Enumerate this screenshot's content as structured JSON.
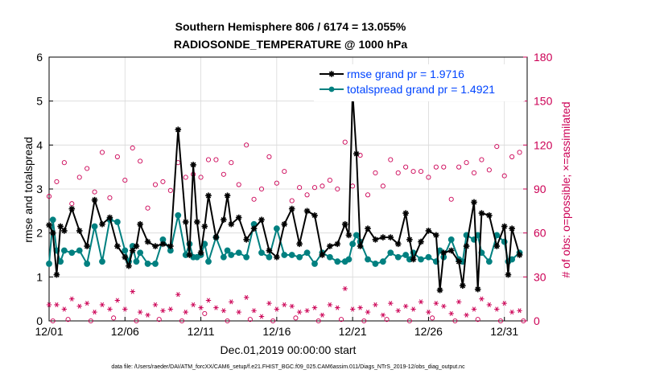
{
  "chart_data": {
    "type": "line",
    "title": "Southern Hemisphere 806 / 6174 = 13.055%",
    "subtitle": "RADIOSONDE_TEMPERATURE @ 1000 hPa",
    "xlabel": "Dec.01,2019 00:00:00 start",
    "ylabel": "rmse and totalspread",
    "y2label": "# of obs: o=possible; ×=assimilated",
    "footer": "data file: /Users/raeder/DAI/ATM_forcXX/CAM6_setup/f.e21.FHIST_BGC.f09_025.CAM6assim.011/Diags_NTrS_2019-12/obs_diag_output.nc",
    "xlim": [
      0,
      31.5
    ],
    "ylim": [
      0,
      6
    ],
    "y2lim": [
      0,
      180
    ],
    "xticks": [
      0,
      5,
      10,
      15,
      20,
      25,
      30
    ],
    "xtick_labels": [
      "12/01",
      "12/06",
      "12/11",
      "12/16",
      "12/21",
      "12/26",
      "12/31"
    ],
    "yticks": [
      0,
      1,
      2,
      3,
      4,
      5,
      6
    ],
    "ytick_labels": [
      "0",
      "1",
      "2",
      "3",
      "4",
      "5",
      "6"
    ],
    "y2ticks": [
      0,
      30,
      60,
      90,
      120,
      150,
      180
    ],
    "y2tick_labels": [
      "0",
      "30",
      "60",
      "90",
      "120",
      "150",
      "180"
    ],
    "colors": {
      "rmse": "#000000",
      "spread": "#008080",
      "obs": "#cc0055",
      "legend_text": "#0044ff"
    },
    "legend": [
      {
        "name": "rmse grand pr = 1.9716",
        "color": "#000000"
      },
      {
        "name": "totalspread grand pr = 1.4921",
        "color": "#008080"
      }
    ],
    "x": [
      0.0,
      0.25,
      0.5,
      0.75,
      1.0,
      1.5,
      2.0,
      2.5,
      3.0,
      3.5,
      4.0,
      4.5,
      5.0,
      5.25,
      5.5,
      5.75,
      6.0,
      6.5,
      7.0,
      7.5,
      8.0,
      8.5,
      9.0,
      9.25,
      9.5,
      9.75,
      10.0,
      10.25,
      10.5,
      11.0,
      11.5,
      11.75,
      12.0,
      12.5,
      13.0,
      13.5,
      14.0,
      14.5,
      15.0,
      15.5,
      16.0,
      16.5,
      17.0,
      17.5,
      18.0,
      18.5,
      19.0,
      19.5,
      19.75,
      20.0,
      20.25,
      20.5,
      21.0,
      21.5,
      22.0,
      22.5,
      23.0,
      23.5,
      23.75,
      24.0,
      24.5,
      25.0,
      25.5,
      25.75,
      26.0,
      26.5,
      27.0,
      27.25,
      27.5,
      28.0,
      28.25,
      28.5,
      29.0,
      29.5,
      30.0,
      30.25,
      30.5,
      31.0
    ],
    "series": [
      {
        "name": "rmse",
        "values": [
          2.18,
          2.0,
          1.05,
          2.15,
          2.05,
          2.55,
          2.05,
          1.7,
          2.75,
          2.2,
          2.35,
          1.7,
          1.45,
          1.25,
          1.6,
          1.7,
          2.2,
          1.8,
          1.7,
          1.75,
          1.7,
          4.35,
          2.25,
          1.5,
          3.55,
          2.25,
          1.55,
          2.15,
          2.85,
          1.9,
          2.3,
          2.85,
          2.2,
          2.35,
          1.85,
          2.1,
          2.3,
          1.6,
          1.45,
          2.2,
          2.55,
          1.75,
          2.5,
          2.4,
          1.5,
          1.7,
          1.75,
          2.2,
          1.95,
          5.2,
          3.8,
          1.7,
          2.1,
          1.85,
          1.9,
          1.9,
          1.75,
          2.45,
          1.85,
          1.4,
          1.8,
          2.05,
          1.95,
          0.7,
          1.55,
          1.6,
          1.35,
          0.8,
          1.7,
          2.7,
          0.72,
          2.45,
          2.4,
          1.7,
          2.15,
          1.05,
          2.1,
          1.5
        ]
      },
      {
        "name": "totalspread",
        "values": [
          1.3,
          2.3,
          1.6,
          1.35,
          1.6,
          1.55,
          1.6,
          1.3,
          2.15,
          1.35,
          2.3,
          2.25,
          1.6,
          1.35,
          1.7,
          1.35,
          1.55,
          1.3,
          1.3,
          1.85,
          1.6,
          2.4,
          1.5,
          1.75,
          1.45,
          1.45,
          1.5,
          1.75,
          1.35,
          1.9,
          1.45,
          1.6,
          1.5,
          1.55,
          1.45,
          2.2,
          1.55,
          1.45,
          2.1,
          1.5,
          1.5,
          1.45,
          1.55,
          1.3,
          1.55,
          1.45,
          1.35,
          1.35,
          1.4,
          1.75,
          1.95,
          1.8,
          1.4,
          1.3,
          1.35,
          1.55,
          1.45,
          1.5,
          1.4,
          1.55,
          1.4,
          1.45,
          1.35,
          1.6,
          1.45,
          1.85,
          1.4,
          1.35,
          1.95,
          1.85,
          1.95,
          1.55,
          1.35,
          1.95,
          1.8,
          1.35,
          1.4,
          1.55
        ]
      },
      {
        "name": "obs_possible",
        "axis": "right",
        "x": [
          0,
          0.5,
          1,
          1.5,
          2,
          2.5,
          3,
          3.5,
          4,
          4.5,
          5,
          5.5,
          6,
          6.5,
          7,
          7.5,
          8,
          8.5,
          9,
          9.5,
          10,
          10.5,
          11,
          11.5,
          12,
          12.5,
          13,
          13.5,
          14,
          14.5,
          15,
          15.5,
          16,
          16.5,
          17,
          17.5,
          18,
          18.5,
          19,
          19.5,
          20,
          20.5,
          21,
          21.5,
          22,
          22.5,
          23,
          23.5,
          24,
          24.5,
          25,
          25.5,
          26,
          26.5,
          27,
          27.5,
          28,
          28.5,
          29,
          29.5,
          30,
          30.5,
          31
        ],
        "values": [
          85,
          95,
          108,
          80,
          98,
          104,
          88,
          115,
          84,
          112,
          96,
          118,
          109,
          77,
          93,
          95,
          89,
          108,
          98,
          100,
          98,
          110,
          110,
          100,
          108,
          93,
          120,
          83,
          90,
          112,
          94,
          102,
          82,
          91,
          86,
          91,
          92,
          96,
          90,
          122,
          92,
          113,
          86,
          101,
          92,
          110,
          101,
          105,
          102,
          102,
          98,
          105,
          105,
          83,
          105,
          108,
          101,
          110,
          103,
          119,
          99,
          112,
          115
        ]
      },
      {
        "name": "obs_assimilated",
        "axis": "right",
        "x": [
          0,
          0.5,
          1,
          1.5,
          2,
          2.5,
          3,
          3.5,
          4,
          4.5,
          5,
          5.5,
          6,
          6.5,
          7,
          7.5,
          8,
          8.5,
          9,
          9.5,
          10,
          10.5,
          11,
          11.5,
          12,
          12.5,
          13,
          13.5,
          14,
          14.5,
          15,
          15.5,
          16,
          16.5,
          17,
          17.5,
          18,
          18.5,
          19,
          19.5,
          20,
          20.5,
          21,
          21.5,
          22,
          22.5,
          23,
          23.5,
          24,
          24.5,
          25,
          25.5,
          26,
          26.5,
          27,
          27.5,
          28,
          28.5,
          29,
          29.5,
          30,
          30.5,
          31
        ],
        "values": [
          11,
          11,
          8,
          15,
          10,
          12,
          6,
          11,
          8,
          14,
          8,
          20,
          6,
          4,
          11,
          7,
          8,
          18,
          6,
          11,
          9,
          14,
          9,
          7,
          13,
          6,
          16,
          7,
          3,
          12,
          8,
          11,
          10,
          6,
          7,
          9,
          4,
          11,
          9,
          22,
          8,
          9,
          6,
          11,
          4,
          12,
          7,
          10,
          8,
          13,
          6,
          12,
          10,
          5,
          13,
          4,
          8,
          15,
          11,
          8,
          12,
          6,
          7
        ]
      },
      {
        "name": "obs_possible_low",
        "axis": "right",
        "x": [
          0.25,
          1.25,
          2.75,
          4.25,
          5.75,
          7.25,
          8.75,
          10.25,
          11.75,
          13.25,
          14.75,
          16.25,
          17.75,
          19.25,
          20.75,
          22.25,
          23.75,
          25.25,
          26.75,
          28.25,
          29.75,
          31.25
        ],
        "values": [
          0,
          1,
          0,
          2,
          0,
          1,
          0,
          5,
          0,
          1,
          0,
          2,
          0,
          1,
          0,
          1,
          0,
          2,
          0,
          1,
          0,
          0
        ]
      }
    ]
  }
}
